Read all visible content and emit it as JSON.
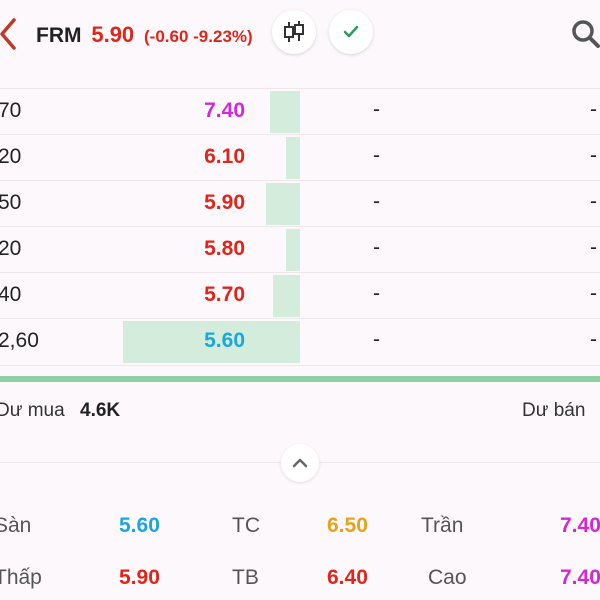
{
  "header": {
    "symbol": "FRM",
    "price": "5.90",
    "change": "(-0.60 -9.23%)"
  },
  "colors": {
    "red": "#e0261b",
    "purple": "#d228d8",
    "blue": "#1aa7dd",
    "orange": "#e8a21e",
    "green_bar": "#d3ecdb",
    "green_line": "#8fd0a3"
  },
  "orderbook": [
    {
      "qty": "70",
      "price": "7.40",
      "color": "#d228d8",
      "ask": "-",
      "ask2": "-",
      "level": 0.17
    },
    {
      "qty": "20",
      "price": "6.10",
      "color": "#e0261b",
      "ask": "-",
      "ask2": "-",
      "level": 0.08
    },
    {
      "qty": "50",
      "price": "5.90",
      "color": "#e0261b",
      "ask": "-",
      "ask2": "-",
      "level": 0.19
    },
    {
      "qty": "20",
      "price": "5.80",
      "color": "#e0261b",
      "ask": "-",
      "ask2": "-",
      "level": 0.08
    },
    {
      "qty": "40",
      "price": "5.70",
      "color": "#e0261b",
      "ask": "-",
      "ask2": "-",
      "level": 0.15
    },
    {
      "qty": "2,60",
      "price": "5.60",
      "color": "#1aa7dd",
      "ask": "-",
      "ask2": "-",
      "level": 1.0
    }
  ],
  "totals": {
    "buy_label": "Dư mua",
    "buy_value": "4.6K",
    "sell_label": "Dư bán"
  },
  "stats": [
    {
      "label": "Sàn",
      "value": "5.60",
      "color": "#1aa7dd"
    },
    {
      "label": "TC",
      "value": "6.50",
      "color": "#e8a21e"
    },
    {
      "label": "Trần",
      "value": "7.40",
      "color": "#d228d8"
    },
    {
      "label": "Thấp",
      "value": "5.90",
      "color": "#e0261b"
    },
    {
      "label": "TB",
      "value": "6.40",
      "color": "#e0261b"
    },
    {
      "label": "Cao",
      "value": "7.40",
      "color": "#d228d8"
    }
  ]
}
